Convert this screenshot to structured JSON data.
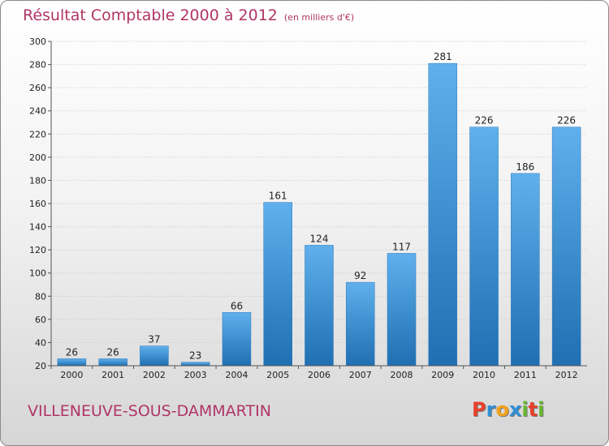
{
  "title": "Résultat Comptable 2000 à 2012",
  "subtitle": "(en milliers d'€)",
  "city": "VILLENEUVE-SOUS-DAMMARTIN",
  "logo": {
    "letters": [
      "P",
      "r",
      "o",
      "x",
      "i",
      "t",
      "i"
    ],
    "colors": [
      "#e8412b",
      "#2f8fd6",
      "#f4a21c",
      "#2f8fd6",
      "#68b82e",
      "#e8412b",
      "#68b82e"
    ]
  },
  "colors": {
    "bar": "#3e97dc",
    "accent": "#b03566"
  },
  "chart_data": {
    "type": "bar",
    "title": "Résultat Comptable 2000 à 2012",
    "subtitle": "(en milliers d'€)",
    "categories": [
      "2000",
      "2001",
      "2002",
      "2003",
      "2004",
      "2005",
      "2006",
      "2007",
      "2008",
      "2009",
      "2010",
      "2011",
      "2012"
    ],
    "values": [
      26,
      26,
      37,
      23,
      66,
      161,
      124,
      92,
      117,
      281,
      226,
      186,
      226
    ],
    "ylim": [
      20,
      300
    ],
    "yticks": [
      20,
      40,
      60,
      80,
      100,
      120,
      140,
      160,
      180,
      200,
      220,
      240,
      260,
      280,
      300
    ],
    "grid": true,
    "data_labels": true
  }
}
